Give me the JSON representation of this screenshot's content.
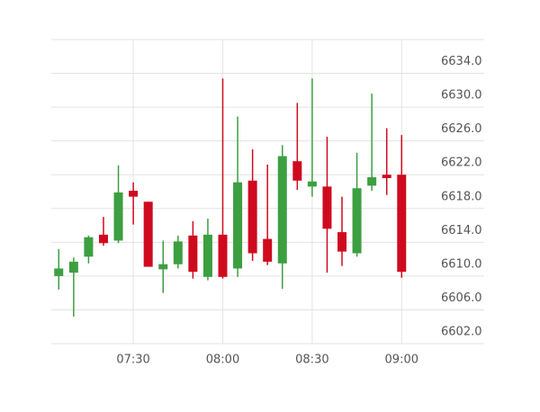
{
  "chart_data": {
    "type": "candlestick",
    "categories": [
      null,
      null,
      null,
      null,
      null,
      "07:30",
      null,
      null,
      null,
      null,
      null,
      "08:00",
      null,
      null,
      null,
      null,
      null,
      "08:30",
      null,
      null,
      null,
      null,
      null,
      "09:00"
    ],
    "open": [
      6610.0,
      6610.4,
      6612.3,
      6614.9,
      6614.2,
      6620.1,
      6618.8,
      6610.8,
      6611.4,
      6614.8,
      6609.9,
      6614.9,
      6610.9,
      6621.3,
      6614.4,
      6611.5,
      6623.6,
      6620.6,
      6620.6,
      6615.2,
      6612.7,
      6620.7,
      6622.0,
      6622.0
    ],
    "high": [
      6613.2,
      6612.2,
      6614.8,
      6617.0,
      6623.1,
      6621.1,
      6618.8,
      6614.2,
      6614.8,
      6616.5,
      6616.8,
      6633.4,
      6628.9,
      6625.0,
      6623.2,
      6625.5,
      6630.5,
      6633.4,
      6626.5,
      6619.4,
      6624.6,
      6631.6,
      6627.5,
      6626.7
    ],
    "low": [
      6608.4,
      6605.2,
      6611.5,
      6613.6,
      6613.9,
      6616.1,
      6611.1,
      6608.0,
      6610.9,
      6609.7,
      6609.5,
      6609.7,
      6609.9,
      6611.8,
      6611.3,
      6608.5,
      6620.2,
      6619.4,
      6610.4,
      6611.2,
      6612.3,
      6620.1,
      6619.6,
      6609.8
    ],
    "close": [
      6610.9,
      6611.7,
      6614.6,
      6613.9,
      6619.9,
      6619.4,
      6611.1,
      6611.4,
      6614.1,
      6610.5,
      6614.9,
      6609.9,
      6621.1,
      6612.7,
      6611.7,
      6624.2,
      6621.3,
      6621.2,
      6615.6,
      6612.9,
      6620.4,
      6621.7,
      6621.6,
      6610.5
    ],
    "up_color": "#3c9f40",
    "down_color": "#cf0a1f",
    "ylim": [
      6602,
      6638
    ],
    "yticks": [
      {
        "value": 6602,
        "label": "6602.0"
      },
      {
        "value": 6606,
        "label": "6606.0"
      },
      {
        "value": 6610,
        "label": "6610.0"
      },
      {
        "value": 6614,
        "label": "6614.0"
      },
      {
        "value": 6618,
        "label": "6618.0"
      },
      {
        "value": 6622,
        "label": "6622.0"
      },
      {
        "value": 6626,
        "label": "6626.0"
      },
      {
        "value": 6630,
        "label": "6630.0"
      },
      {
        "value": 6634,
        "label": "6634.0"
      }
    ],
    "y_axis_side": "right",
    "grid": true
  }
}
